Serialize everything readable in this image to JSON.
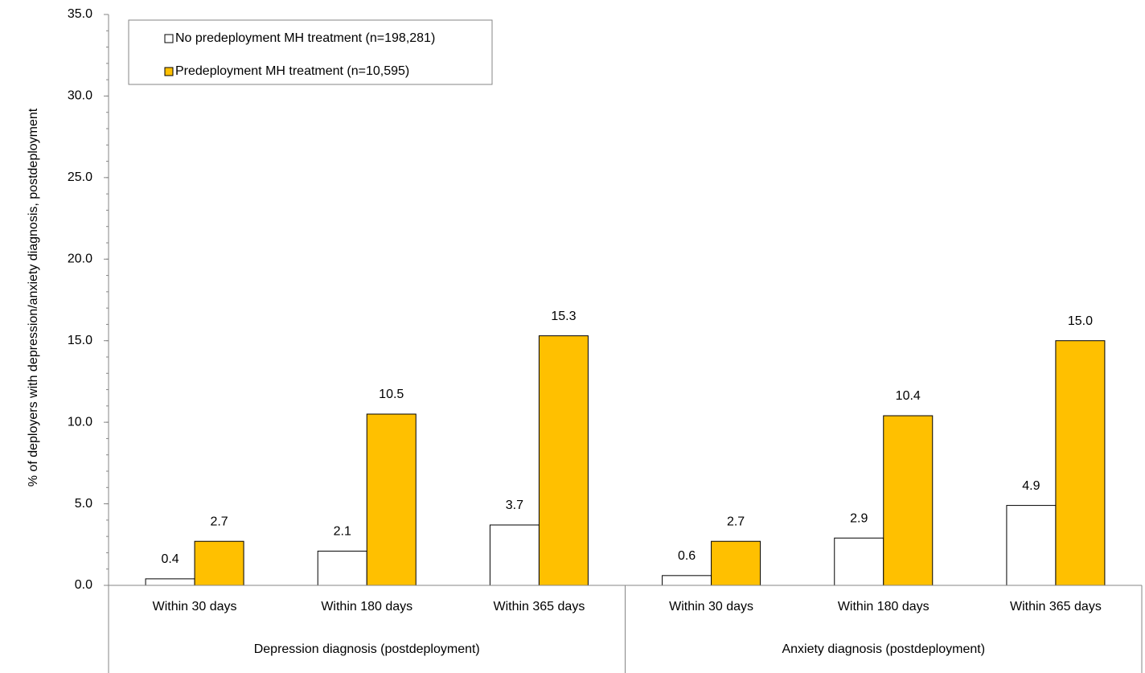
{
  "chart_data": {
    "type": "bar",
    "y_label": "% of deployers with depression/anxiety diagnosis, postdeployment",
    "groups": [
      {
        "name": "Depression diagnosis (postdeployment)",
        "categories": [
          "Within 30 days",
          "Within 180 days",
          "Within 365 days"
        ]
      },
      {
        "name": "Anxiety diagnosis (postdeployment)",
        "categories": [
          "Within 30 days",
          "Within 180 days",
          "Within 365 days"
        ]
      }
    ],
    "series": [
      {
        "name": "No predeployment MH treatment (n=198,281)",
        "color": "#ffffff",
        "values": [
          0.4,
          2.1,
          3.7,
          0.6,
          2.9,
          4.9
        ],
        "value_labels": [
          "0.4",
          "2.1",
          "3.7",
          "0.6",
          "2.9",
          "4.9"
        ]
      },
      {
        "name": "Predeployment MH treatment (n=10,595)",
        "color": "#ffc000",
        "values": [
          2.7,
          10.5,
          15.3,
          2.7,
          10.4,
          15.0
        ],
        "value_labels": [
          "2.7",
          "10.5",
          "15.3",
          "2.7",
          "10.4",
          "15.0"
        ]
      }
    ],
    "ylim": [
      0,
      35
    ],
    "yticks": [
      {
        "value": 0,
        "label": "0.0"
      },
      {
        "value": 5,
        "label": "5.0"
      },
      {
        "value": 10,
        "label": "10.0"
      },
      {
        "value": 15,
        "label": "15.0"
      },
      {
        "value": 20,
        "label": "20.0"
      },
      {
        "value": 25,
        "label": "25.0"
      },
      {
        "value": 30,
        "label": "30.0"
      },
      {
        "value": 35,
        "label": "35.0"
      }
    ],
    "legend": "top-left"
  }
}
